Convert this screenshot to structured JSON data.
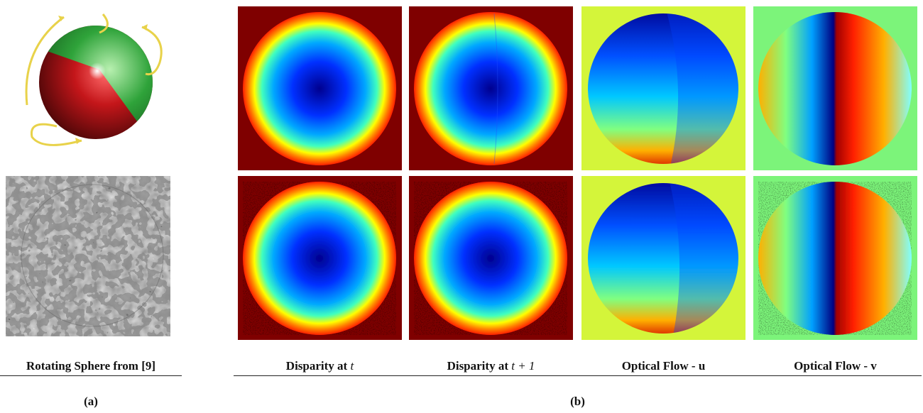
{
  "figure": {
    "panel_a": {
      "caption": "Rotating Sphere from [9]",
      "label": "(a)"
    },
    "panel_b": {
      "label": "(b)",
      "columns": [
        {
          "caption_prefix": "Disparity at ",
          "caption_var": "t"
        },
        {
          "caption_prefix": "Disparity at ",
          "caption_var": "t + 1"
        },
        {
          "caption_prefix": "Optical Flow - u",
          "caption_var": ""
        },
        {
          "caption_prefix": "Optical Flow - v",
          "caption_var": ""
        }
      ]
    },
    "colors": {
      "disparity_bg": "#7f0000",
      "flow_u_bg": "#d4f53a",
      "flow_v_bg": "#7cf47a"
    }
  }
}
